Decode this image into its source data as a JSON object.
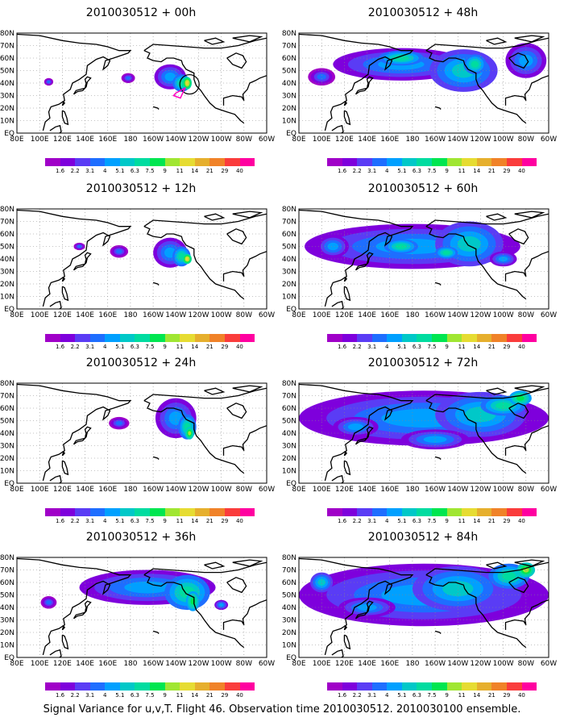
{
  "panels": [
    {
      "title": "2010030512 + 00h",
      "intensity": 0
    },
    {
      "title": "2010030512 + 48h",
      "intensity": 4
    },
    {
      "title": "2010030512 + 12h",
      "intensity": 1
    },
    {
      "title": "2010030512 + 60h",
      "intensity": 5
    },
    {
      "title": "2010030512 + 24h",
      "intensity": 2
    },
    {
      "title": "2010030512 + 72h",
      "intensity": 6
    },
    {
      "title": "2010030512 + 36h",
      "intensity": 3
    },
    {
      "title": "2010030512 + 84h",
      "intensity": 7
    }
  ],
  "lat_labels": [
    "80N",
    "70N",
    "60N",
    "50N",
    "40N",
    "30N",
    "20N",
    "10N",
    "EQ"
  ],
  "lon_labels": [
    "80E",
    "100E",
    "120E",
    "140E",
    "160E",
    "180",
    "160W",
    "140W",
    "120W",
    "100W",
    "80W",
    "60W"
  ],
  "colorbar": {
    "labels": [
      "1.6",
      "2.2",
      "3.1",
      "4",
      "5.1",
      "6.3",
      "7.5",
      "9",
      "11",
      "14",
      "21",
      "29",
      "40"
    ],
    "colors": [
      "#a000c8",
      "#7e00dc",
      "#5a3cf5",
      "#1e6eff",
      "#00a0ff",
      "#00c8c8",
      "#00dca0",
      "#00e650",
      "#a0e632",
      "#e6dc32",
      "#e6af2d",
      "#f08228",
      "#fa3c3c",
      "#ff00a0"
    ]
  },
  "footer": "Signal Variance for u,v,T. Flight 46. Observation time 2010030512. 2010030100 ensemble."
}
